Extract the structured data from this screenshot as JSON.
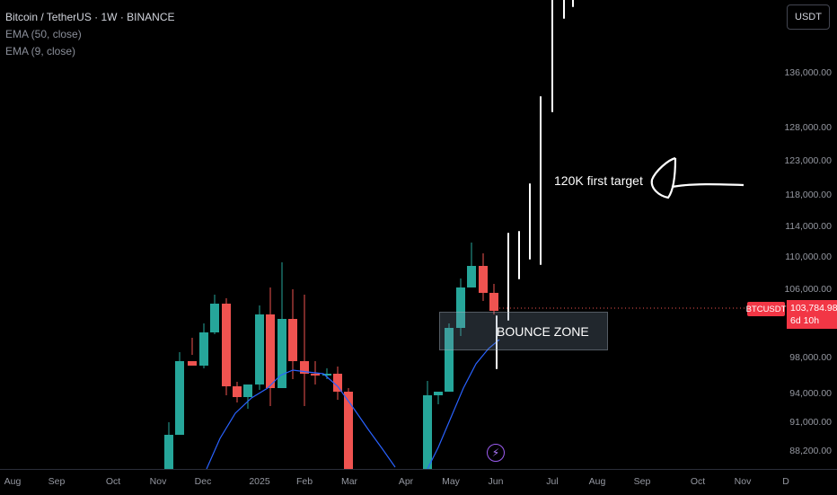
{
  "legend": {
    "title": "Bitcoin / TetherUS · 1W · BINANCE",
    "indicators": [
      "EMA (50, close)",
      "EMA (9, close)"
    ]
  },
  "currency_button": "USDT",
  "price_axis": [
    "136,000.00",
    "128,000.00",
    "123,000.00",
    "118,000.00",
    "114,000.00",
    "110,000.00",
    "106,000.00",
    "98,000.00",
    "94,000.00",
    "91,000.00",
    "88,200.00"
  ],
  "time_axis": [
    "Aug",
    "Sep",
    "Oct",
    "Nov",
    "Dec",
    "2025",
    "Feb",
    "Mar",
    "Apr",
    "May",
    "Jun",
    "Jul",
    "Aug",
    "Sep",
    "Oct",
    "Nov",
    "D"
  ],
  "symbol_label": "BTCUSDT",
  "last_price": "103,784.98",
  "countdown": "6d 10h",
  "annotations": {
    "target": "120K first target",
    "zone": "BOUNCE ZONE"
  },
  "colors": {
    "up": "#26a69a",
    "down": "#ef5350",
    "ema": "#2962ff",
    "bg": "#000000"
  }
}
